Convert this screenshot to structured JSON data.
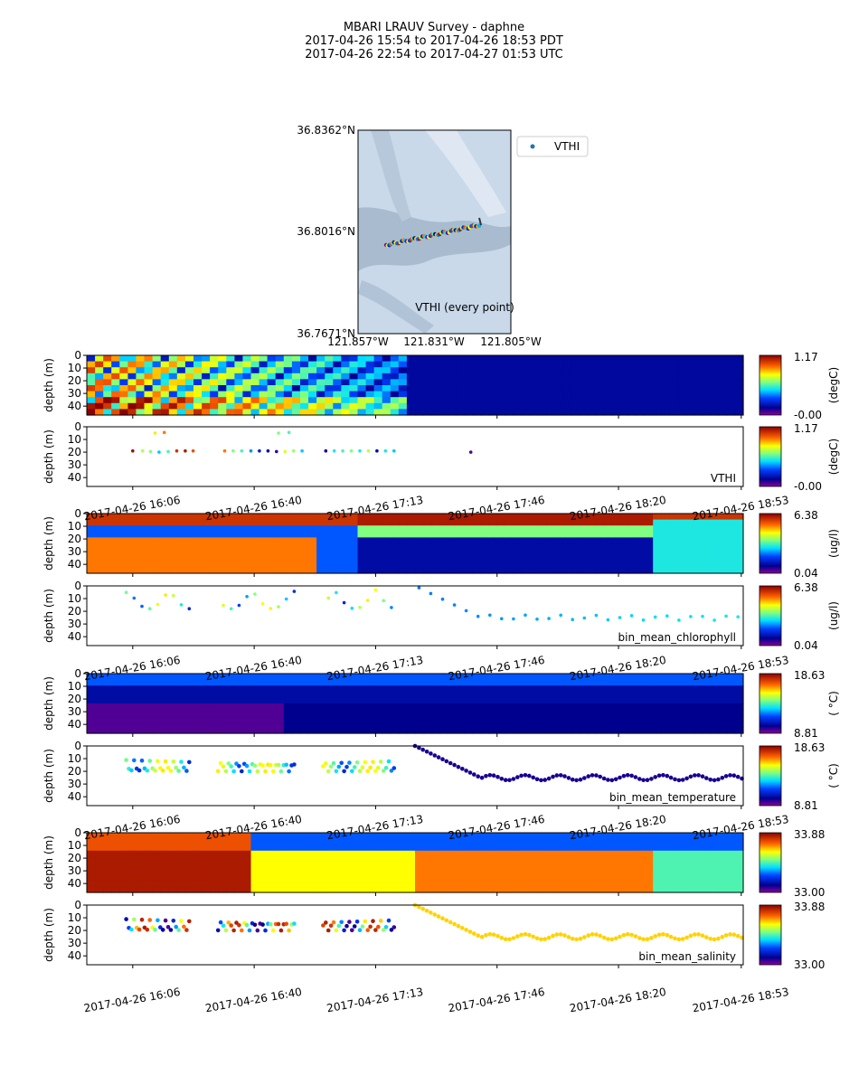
{
  "title": {
    "line1": "MBARI LRAUV Survey - daphne",
    "line2": "2017-04-26 15:54  to  2017-04-26 18:53 PDT",
    "line3": "2017-04-26 22:54  to  2017-04-27 01:53 UTC"
  },
  "map": {
    "lat_ticks": [
      "36.8362°N",
      "36.8016°N",
      "36.7671°N"
    ],
    "lon_ticks": [
      "121.857°W",
      "121.831°W",
      "121.805°W"
    ],
    "legend_label": "VTHI",
    "caption": "VTHI (every point)",
    "track_color": "#1f77b4"
  },
  "depth_axis": {
    "ylabel": "depth (m)",
    "ticks": [
      "0",
      "10",
      "20",
      "30",
      "40"
    ]
  },
  "time_ticks": [
    "2017-04-26 16:06",
    "2017-04-26 16:40",
    "2017-04-26 17:13",
    "2017-04-26 17:46",
    "2017-04-26 18:20",
    "2017-04-26 18:53"
  ],
  "chart_data": [
    {
      "type": "heatmap",
      "variable": "VTHI",
      "units": "(degC)",
      "ylim": [
        47,
        0
      ],
      "colorbar": {
        "min": "-0.00",
        "max": "1.17"
      },
      "label": ""
    },
    {
      "type": "scatter",
      "variable": "VTHI",
      "units": "(degC)",
      "label": "VTHI",
      "colorbar": {
        "min": "-0.00",
        "max": "1.17"
      },
      "ylim": [
        47,
        0
      ],
      "points": [
        {
          "t": 0.07,
          "d": 19,
          "v": 0.97
        },
        {
          "t": 0.085,
          "d": 19,
          "v": 0.6
        },
        {
          "t": 0.097,
          "d": 19.5,
          "v": 0.55
        },
        {
          "t": 0.104,
          "d": 5,
          "v": 0.7
        },
        {
          "t": 0.11,
          "d": 20,
          "v": 0.4
        },
        {
          "t": 0.118,
          "d": 4.5,
          "v": 0.8
        },
        {
          "t": 0.124,
          "d": 19.5,
          "v": 0.5
        },
        {
          "t": 0.137,
          "d": 19,
          "v": 0.9
        },
        {
          "t": 0.15,
          "d": 19,
          "v": 0.95
        },
        {
          "t": 0.162,
          "d": 19,
          "v": 0.85
        },
        {
          "t": 0.21,
          "d": 19,
          "v": 0.8
        },
        {
          "t": 0.223,
          "d": 19,
          "v": 0.55
        },
        {
          "t": 0.236,
          "d": 19,
          "v": 0.5
        },
        {
          "t": 0.25,
          "d": 19,
          "v": 0.35
        },
        {
          "t": 0.263,
          "d": 19,
          "v": 0.2
        },
        {
          "t": 0.276,
          "d": 19,
          "v": 0.15
        },
        {
          "t": 0.289,
          "d": 19.5,
          "v": 0.08
        },
        {
          "t": 0.292,
          "d": 5,
          "v": 0.55
        },
        {
          "t": 0.302,
          "d": 19.5,
          "v": 0.65
        },
        {
          "t": 0.308,
          "d": 4.5,
          "v": 0.5
        },
        {
          "t": 0.315,
          "d": 19,
          "v": 0.58
        },
        {
          "t": 0.328,
          "d": 19,
          "v": 0.4
        },
        {
          "t": 0.364,
          "d": 19,
          "v": 0.1
        },
        {
          "t": 0.377,
          "d": 19,
          "v": 0.45
        },
        {
          "t": 0.39,
          "d": 19,
          "v": 0.5
        },
        {
          "t": 0.403,
          "d": 19,
          "v": 0.55
        },
        {
          "t": 0.416,
          "d": 19,
          "v": 0.45
        },
        {
          "t": 0.429,
          "d": 19,
          "v": 0.6
        },
        {
          "t": 0.442,
          "d": 19,
          "v": 0.15
        },
        {
          "t": 0.455,
          "d": 19,
          "v": 0.45
        },
        {
          "t": 0.468,
          "d": 19,
          "v": 0.4
        },
        {
          "t": 0.585,
          "d": 20,
          "v": 0.05
        }
      ]
    },
    {
      "type": "heatmap",
      "variable": "chlorophyll",
      "units": "(ug/l)",
      "ylim": [
        47,
        0
      ],
      "colorbar": {
        "min": "0.04",
        "max": "6.38"
      },
      "label": ""
    },
    {
      "type": "scatter",
      "variable": "bin_mean_chlorophyll",
      "units": "(ug/l)",
      "label": "bin_mean_chlorophyll",
      "colorbar": {
        "min": "0.04",
        "max": "6.38"
      },
      "ylim": [
        47,
        0
      ]
    },
    {
      "type": "heatmap",
      "variable": "temperature",
      "units": "( °C)",
      "ylim": [
        47,
        0
      ],
      "colorbar": {
        "min": "8.81",
        "max": "18.63"
      },
      "label": ""
    },
    {
      "type": "scatter",
      "variable": "bin_mean_temperature",
      "units": "( °C)",
      "label": "bin_mean_temperature",
      "colorbar": {
        "min": "8.81",
        "max": "18.63"
      },
      "ylim": [
        47,
        0
      ]
    },
    {
      "type": "heatmap",
      "variable": "salinity",
      "units": "",
      "ylim": [
        47,
        0
      ],
      "colorbar": {
        "min": "33.00",
        "max": "33.88"
      },
      "label": ""
    },
    {
      "type": "scatter",
      "variable": "bin_mean_salinity",
      "units": "",
      "label": "bin_mean_salinity",
      "colorbar": {
        "min": "33.00",
        "max": "33.88"
      },
      "ylim": [
        47,
        0
      ]
    }
  ]
}
